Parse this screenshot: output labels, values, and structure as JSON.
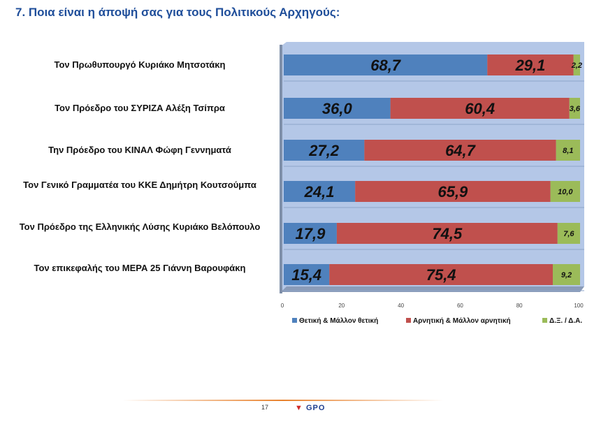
{
  "title": "7. Ποια είναι η άποψή σας για τους Πολιτικούς Αρχηγούς:",
  "chart_data": {
    "type": "bar",
    "orientation": "horizontal",
    "stacked": true,
    "categories": [
      "Τον Πρωθυπουργό Κυριάκο Μητσοτάκη",
      "Τον Πρόεδρο του ΣΥΡΙΖΑ Αλέξη Τσίπρα",
      "Την Πρόεδρο του ΚΙΝΑΛ Φώφη Γεννηματά",
      "Τον Γενικό Γραμματέα του ΚΚΕ Δημήτρη Κουτσούμπα",
      "Τον Πρόεδρο της Ελληνικής Λύσης Κυριάκο Βελόπουλο",
      "Τον επικεφαλής του ΜΕΡΑ 25 Γιάννη Βαρουφάκη"
    ],
    "series": [
      {
        "name": "Θετική & Μάλλον θετική",
        "color": "#4f81bd",
        "values": [
          68.7,
          36.0,
          27.2,
          24.1,
          17.9,
          15.4
        ],
        "labels": [
          "68,7",
          "36,0",
          "27,2",
          "24,1",
          "17,9",
          "15,4"
        ]
      },
      {
        "name": "Αρνητική & Μάλλον αρνητική",
        "color": "#c0504d",
        "values": [
          29.1,
          60.4,
          64.7,
          65.9,
          74.5,
          75.4
        ],
        "labels": [
          "29,1",
          "60,4",
          "64,7",
          "65,9",
          "74,5",
          "75,4"
        ]
      },
      {
        "name": "Δ.Ξ. / Δ.Α.",
        "color": "#9bbb59",
        "values": [
          2.2,
          3.6,
          8.1,
          10.0,
          7.6,
          9.2
        ],
        "labels": [
          "2,2",
          "3,6",
          "8,1",
          "10,0",
          "7,6",
          "9,2"
        ]
      }
    ],
    "xlim": [
      0,
      100
    ],
    "xticks": [
      "0",
      "20",
      "40",
      "60",
      "80",
      "100"
    ],
    "legend": "bottom",
    "grid": false
  },
  "footer": {
    "page": "17",
    "logo": "GPO"
  }
}
